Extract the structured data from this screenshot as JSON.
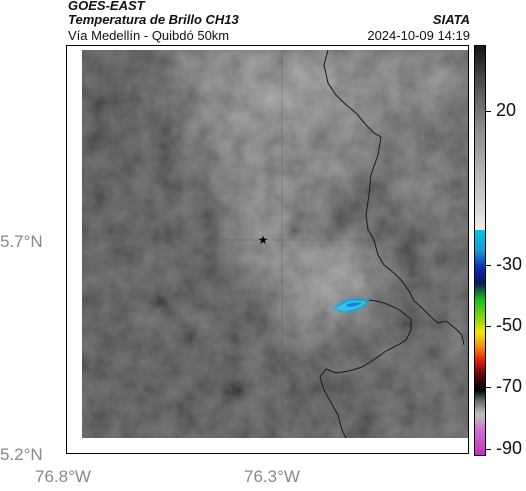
{
  "header": {
    "source": "GOES-EAST",
    "product": "Temperatura de Brillo CH13",
    "route": "Vía Medellín - Quibdó 50km",
    "org": "SIATA",
    "datetime": "2024-10-09 14:19"
  },
  "axes": {
    "lat_labels": [
      "5.7°N",
      "5.2°N"
    ],
    "lon_labels": [
      "76.8°W",
      "76.3°W"
    ]
  },
  "colorbar": {
    "ticks": [
      "20",
      "-30",
      "-50",
      "-70",
      "-90"
    ],
    "colors": {
      "cyan": "#00c8e6",
      "blue": "#0a2fb4",
      "green": "#18c018",
      "yellow": "#f2e600",
      "red": "#e01a10",
      "magenta": "#c030c0"
    }
  },
  "markers": {
    "star": "star-icon"
  }
}
